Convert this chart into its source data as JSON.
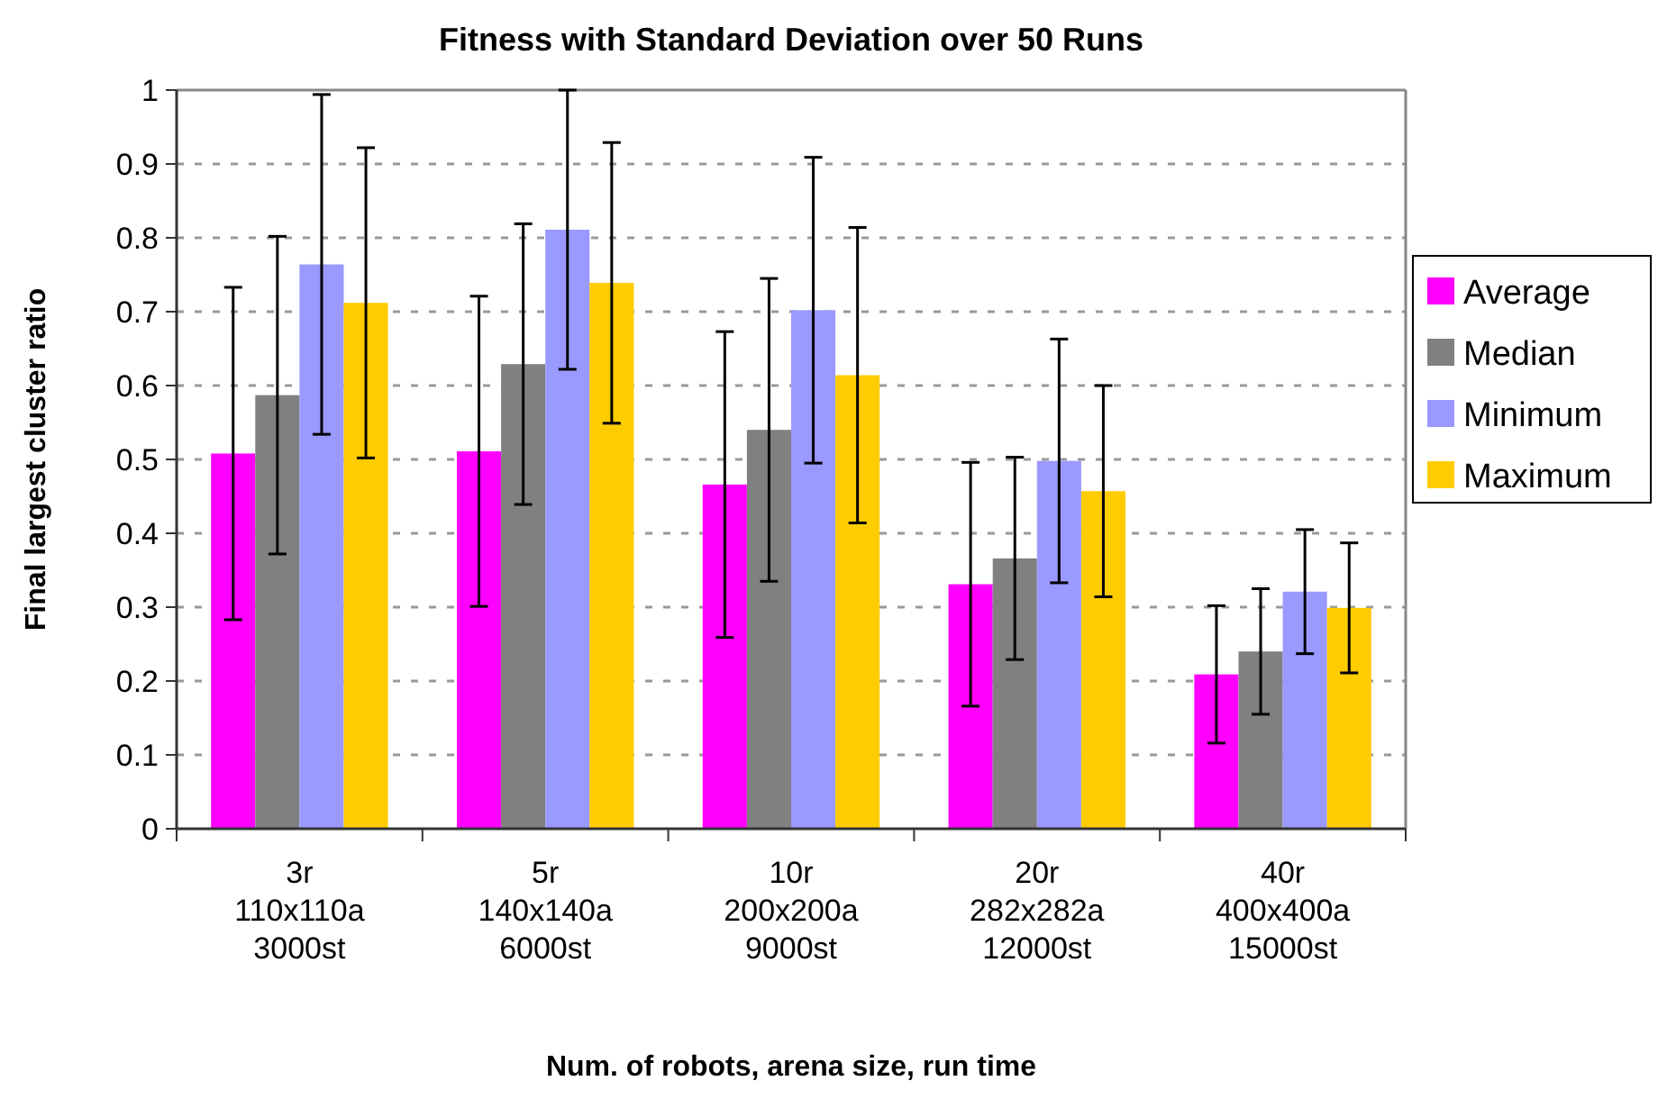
{
  "chart_data": {
    "type": "bar",
    "title": "Fitness with Standard Deviation over 50 Runs",
    "xlabel": "Num. of robots, arena size, run time",
    "ylabel": "Final largest cluster ratio",
    "categories": [
      "3r 110x110a 3000st",
      "5r 140x140a 6000st",
      "10r 200x200a 9000st",
      "20r 282x282a 12000st",
      "40r 400x400a 15000st"
    ],
    "series": [
      {
        "name": "Average",
        "color": "#ff00ff",
        "values": [
          0.508,
          0.511,
          0.466,
          0.331,
          0.209
        ],
        "errors": [
          0.225,
          0.21,
          0.207,
          0.165,
          0.093
        ]
      },
      {
        "name": "Median",
        "color": "#808080",
        "values": [
          0.587,
          0.629,
          0.54,
          0.366,
          0.24
        ],
        "errors": [
          0.215,
          0.19,
          0.205,
          0.137,
          0.085
        ]
      },
      {
        "name": "Minimum",
        "color": "#9999ff",
        "values": [
          0.764,
          0.811,
          0.702,
          0.498,
          0.321
        ],
        "errors": [
          0.23,
          0.189,
          0.207,
          0.165,
          0.084
        ]
      },
      {
        "name": "Maximum",
        "color": "#ffcc00",
        "values": [
          0.712,
          0.739,
          0.614,
          0.457,
          0.299
        ],
        "errors": [
          0.21,
          0.19,
          0.2,
          0.143,
          0.088
        ]
      }
    ],
    "ylim": [
      0,
      1
    ],
    "yticks": [
      0,
      0.1,
      0.2,
      0.3,
      0.4,
      0.5,
      0.6,
      0.7,
      0.8,
      0.9,
      1
    ],
    "grid": "y",
    "legend": "right"
  }
}
